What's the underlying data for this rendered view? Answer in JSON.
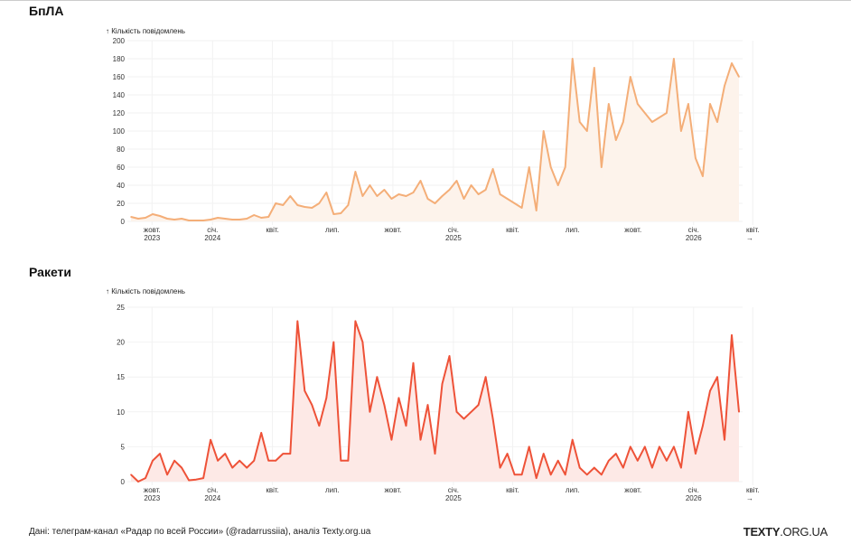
{
  "chart_data": [
    {
      "type": "area",
      "title": "БпЛА",
      "ylabel": "↑ Кількість повідомлень",
      "xlabel": "",
      "ylim": [
        0,
        200
      ],
      "yticks": [
        0,
        20,
        40,
        60,
        80,
        100,
        120,
        140,
        160,
        180,
        200
      ],
      "x_start": "2023-08-30",
      "step_days": 11,
      "color": "#f4ae78",
      "fill": "#fdf3eb",
      "values": [
        5,
        3,
        4,
        8,
        6,
        3,
        2,
        3,
        1,
        1,
        1,
        2,
        4,
        3,
        2,
        2,
        3,
        7,
        4,
        5,
        20,
        18,
        28,
        18,
        16,
        15,
        20,
        32,
        8,
        9,
        18,
        55,
        28,
        40,
        28,
        35,
        25,
        30,
        28,
        32,
        45,
        25,
        20,
        28,
        35,
        45,
        25,
        40,
        30,
        35,
        58,
        30,
        25,
        20,
        15,
        60,
        12,
        100,
        60,
        40,
        60,
        180,
        110,
        100,
        170,
        60,
        130,
        90,
        110,
        160,
        130,
        120,
        110,
        115,
        120,
        180,
        100,
        130,
        70,
        50,
        130,
        110,
        150,
        175,
        160
      ],
      "xticks": [
        {
          "date": "2023-10-01",
          "label": "жовт.",
          "year": "2023"
        },
        {
          "date": "2024-01-01",
          "label": "січ.",
          "year": "2024"
        },
        {
          "date": "2024-04-01",
          "label": "квіт.",
          "year": ""
        },
        {
          "date": "2024-07-01",
          "label": "лип.",
          "year": ""
        },
        {
          "date": "2024-10-01",
          "label": "жовт.",
          "year": ""
        },
        {
          "date": "2025-01-01",
          "label": "січ.",
          "year": "2025"
        },
        {
          "date": "2025-04-01",
          "label": "квіт.",
          "year": ""
        },
        {
          "date": "2025-07-01",
          "label": "лип.",
          "year": ""
        },
        {
          "date": "2025-10-01",
          "label": "жовт.",
          "year": ""
        },
        {
          "date": "2026-01-01",
          "label": "січ.",
          "year": "2026"
        },
        {
          "date": "2026-04-01",
          "label": "квіт.",
          "year": ""
        }
      ],
      "x_arrow": "→"
    },
    {
      "type": "area",
      "title": "Ракети",
      "ylabel": "↑ Кількість повідомлень",
      "xlabel": "",
      "ylim": [
        0,
        25
      ],
      "yticks": [
        0,
        5,
        10,
        15,
        20,
        25
      ],
      "x_start": "2023-08-30",
      "step_days": 11,
      "color": "#ee5238",
      "fill": "#fde9e6",
      "values": [
        1,
        0,
        0.5,
        3,
        4,
        1,
        3,
        2,
        0.2,
        0.3,
        0.5,
        6,
        3,
        4,
        2,
        3,
        2,
        3,
        7,
        3,
        3,
        4,
        4,
        23,
        13,
        11,
        8,
        12,
        20,
        3,
        3,
        23,
        20,
        10,
        15,
        11,
        6,
        12,
        8,
        17,
        6,
        11,
        4,
        14,
        18,
        10,
        9,
        10,
        11,
        15,
        9,
        2,
        4,
        1,
        1,
        5,
        0.5,
        4,
        1,
        3,
        1,
        6,
        2,
        1,
        2,
        1,
        3,
        4,
        2,
        5,
        3,
        5,
        2,
        5,
        3,
        5,
        2,
        10,
        4,
        8,
        13,
        15,
        6,
        21,
        10
      ],
      "xticks": [
        {
          "date": "2023-10-01",
          "label": "жовт.",
          "year": "2023"
        },
        {
          "date": "2024-01-01",
          "label": "січ.",
          "year": "2024"
        },
        {
          "date": "2024-04-01",
          "label": "квіт.",
          "year": ""
        },
        {
          "date": "2024-07-01",
          "label": "лип.",
          "year": ""
        },
        {
          "date": "2024-10-01",
          "label": "жовт.",
          "year": ""
        },
        {
          "date": "2025-01-01",
          "label": "січ.",
          "year": "2025"
        },
        {
          "date": "2025-04-01",
          "label": "квіт.",
          "year": ""
        },
        {
          "date": "2025-07-01",
          "label": "лип.",
          "year": ""
        },
        {
          "date": "2025-10-01",
          "label": "жовт.",
          "year": ""
        },
        {
          "date": "2026-01-01",
          "label": "січ.",
          "year": "2026"
        },
        {
          "date": "2026-04-01",
          "label": "квіт.",
          "year": ""
        }
      ],
      "x_arrow": "→"
    }
  ],
  "footer": {
    "source": "Дані: телеграм-канал «Радар по всей России» (@radarrussiia), аналіз Texty.org.ua",
    "logo_bold": "TEXTY",
    "logo_rest": ".ORG.UA"
  }
}
